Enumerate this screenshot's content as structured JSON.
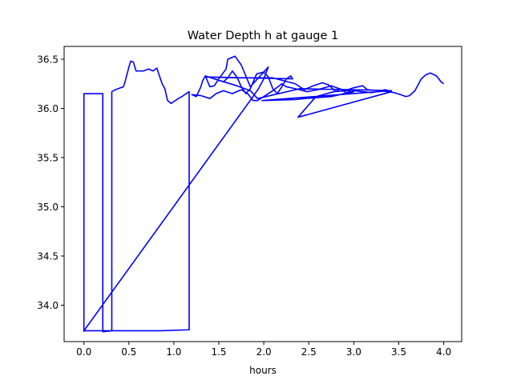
{
  "chart_data": {
    "type": "line",
    "title": "Water Depth h at gauge 1",
    "xlabel": "hours",
    "ylabel": "",
    "xlim": [
      -0.22,
      4.2
    ],
    "ylim": [
      33.63,
      36.63
    ],
    "xticks": [
      "0.0",
      "0.5",
      "1.0",
      "1.5",
      "2.0",
      "2.5",
      "3.0",
      "3.5",
      "4.0"
    ],
    "yticks": [
      "34.0",
      "34.5",
      "35.0",
      "35.5",
      "36.0",
      "36.5"
    ],
    "grid": false,
    "color": "#0000ff",
    "series": [
      {
        "points": [
          [
            0.0,
            33.73
          ],
          [
            0.0,
            36.15
          ],
          [
            0.21,
            36.15
          ],
          [
            0.21,
            33.73
          ],
          [
            0.31,
            33.74
          ],
          [
            0.31,
            36.17
          ],
          [
            0.35,
            36.19
          ],
          [
            0.44,
            36.22
          ],
          [
            0.46,
            36.28
          ],
          [
            0.5,
            36.42
          ],
          [
            0.52,
            36.48
          ],
          [
            0.55,
            36.47
          ],
          [
            0.58,
            36.38
          ],
          [
            0.66,
            36.38
          ],
          [
            0.72,
            36.4
          ],
          [
            0.77,
            36.38
          ],
          [
            0.81,
            36.41
          ],
          [
            0.84,
            36.33
          ],
          [
            0.87,
            36.25
          ],
          [
            0.9,
            36.2
          ],
          [
            0.93,
            36.08
          ],
          [
            0.97,
            36.05
          ],
          [
            1.0,
            36.07
          ],
          [
            1.05,
            36.1
          ],
          [
            1.09,
            36.12
          ],
          [
            1.12,
            36.14
          ],
          [
            1.17,
            36.17
          ],
          [
            1.17,
            33.75
          ],
          [
            0.85,
            33.74
          ],
          [
            0.0,
            33.74
          ],
          [
            1.88,
            36.12
          ],
          [
            1.94,
            36.2
          ],
          [
            2.0,
            36.3
          ],
          [
            2.05,
            36.42
          ],
          [
            1.85,
            36.22
          ],
          [
            1.75,
            36.44
          ],
          [
            1.68,
            36.53
          ],
          [
            1.6,
            36.5
          ],
          [
            1.58,
            36.4
          ],
          [
            1.5,
            36.3
          ],
          [
            1.45,
            36.23
          ],
          [
            1.4,
            36.22
          ],
          [
            1.35,
            36.33
          ],
          [
            1.45,
            36.3
          ],
          [
            1.55,
            36.27
          ],
          [
            1.6,
            36.31
          ],
          [
            1.65,
            36.38
          ],
          [
            1.7,
            36.32
          ],
          [
            1.75,
            36.22
          ],
          [
            1.8,
            36.15
          ],
          [
            1.85,
            36.2
          ],
          [
            1.92,
            36.35
          ],
          [
            2.0,
            36.37
          ],
          [
            2.05,
            36.32
          ],
          [
            2.1,
            36.2
          ],
          [
            2.15,
            36.15
          ],
          [
            2.2,
            36.22
          ],
          [
            2.25,
            36.3
          ],
          [
            2.3,
            36.33
          ],
          [
            2.32,
            36.3
          ],
          [
            1.35,
            36.32
          ],
          [
            1.7,
            36.31
          ],
          [
            2.1,
            36.31
          ],
          [
            2.35,
            36.25
          ],
          [
            2.45,
            36.19
          ],
          [
            2.55,
            36.23
          ],
          [
            2.65,
            36.26
          ],
          [
            2.72,
            36.24
          ],
          [
            2.8,
            36.17
          ],
          [
            2.85,
            36.2
          ],
          [
            2.93,
            36.15
          ],
          [
            3.0,
            36.17
          ],
          [
            2.93,
            36.18
          ],
          [
            2.78,
            36.17
          ],
          [
            2.58,
            36.12
          ],
          [
            2.38,
            35.91
          ],
          [
            3.42,
            36.17
          ],
          [
            3.35,
            36.19
          ],
          [
            3.2,
            36.16
          ],
          [
            3.0,
            36.18
          ],
          [
            2.85,
            36.14
          ],
          [
            2.75,
            36.12
          ],
          [
            2.45,
            36.1
          ],
          [
            2.35,
            36.09
          ],
          [
            1.98,
            36.08
          ],
          [
            3.42,
            36.18
          ],
          [
            3.0,
            36.19
          ],
          [
            2.4,
            36.2
          ],
          [
            1.93,
            36.1
          ],
          [
            1.85,
            36.18
          ],
          [
            1.7,
            36.23
          ],
          [
            1.52,
            36.28
          ],
          [
            1.35,
            36.33
          ],
          [
            1.32,
            36.28
          ],
          [
            1.3,
            36.22
          ],
          [
            1.25,
            36.12
          ],
          [
            1.2,
            36.14
          ],
          [
            1.3,
            36.13
          ],
          [
            1.4,
            36.1
          ],
          [
            1.47,
            36.15
          ],
          [
            1.55,
            36.18
          ],
          [
            1.65,
            36.15
          ],
          [
            1.75,
            36.19
          ],
          [
            1.82,
            36.15
          ],
          [
            1.88,
            36.08
          ],
          [
            1.93,
            36.08
          ],
          [
            2.0,
            36.12
          ],
          [
            2.1,
            36.18
          ],
          [
            2.2,
            36.25
          ],
          [
            2.25,
            36.22
          ],
          [
            2.35,
            36.2
          ],
          [
            2.48,
            36.17
          ],
          [
            2.6,
            36.19
          ],
          [
            2.75,
            36.23
          ],
          [
            2.9,
            36.18
          ],
          [
            3.0,
            36.21
          ],
          [
            3.1,
            36.23
          ],
          [
            3.15,
            36.19
          ],
          [
            3.3,
            36.18
          ],
          [
            3.45,
            36.16
          ],
          [
            3.52,
            36.14
          ],
          [
            3.58,
            36.12
          ],
          [
            3.62,
            36.13
          ],
          [
            3.68,
            36.18
          ],
          [
            3.75,
            36.3
          ],
          [
            3.8,
            36.34
          ],
          [
            3.85,
            36.36
          ],
          [
            3.92,
            36.33
          ],
          [
            3.97,
            36.27
          ],
          [
            4.0,
            36.25
          ]
        ]
      }
    ]
  }
}
